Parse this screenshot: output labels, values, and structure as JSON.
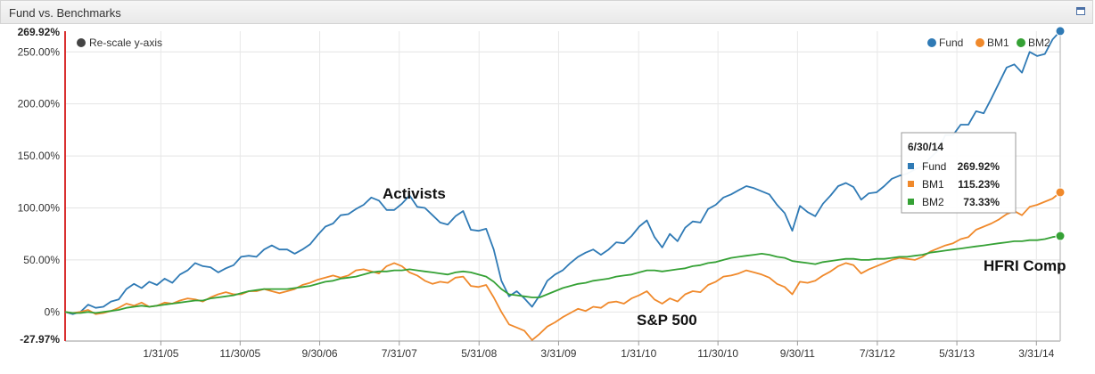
{
  "window": {
    "title": "Fund vs. Benchmarks"
  },
  "controls": {
    "rescale_label": "Re-scale y-axis"
  },
  "tooltip": {
    "date": "6/30/14",
    "rows": [
      {
        "name": "Fund",
        "value": "269.92%"
      },
      {
        "name": "BM1",
        "value": "115.23%"
      },
      {
        "name": "BM2",
        "value": "73.33%"
      }
    ]
  },
  "annotations": {
    "fund": "Activists",
    "bm1": "S&P 500",
    "bm2": "HFRI Comp"
  },
  "colors": {
    "fund": "#2f7ab5",
    "bm1": "#f0892b",
    "bm2": "#35a135",
    "axis_marker": "#d93030"
  },
  "chart_data": {
    "type": "line",
    "y_unit": "%",
    "ylim": [
      -27.97,
      269.92
    ],
    "y_ticks": [
      0,
      50,
      100,
      150,
      200,
      250
    ],
    "y_tick_labels": [
      "0%",
      "50.00%",
      "100.00%",
      "150.00%",
      "200.00%",
      "250.00%"
    ],
    "y_min_label": "-27.97%",
    "y_max_label": "269.92%",
    "x_tick_labels": [
      "1/31/05",
      "11/30/05",
      "9/30/06",
      "7/31/07",
      "5/31/08",
      "3/31/09",
      "1/31/10",
      "11/30/10",
      "9/30/11",
      "7/31/12",
      "5/31/13",
      "3/31/14"
    ],
    "x_start": "2004-01-31",
    "x_end": "2014-06-30",
    "grid": true,
    "legend": "top-right",
    "series": [
      {
        "name": "Fund",
        "values": [
          0,
          -2,
          0,
          7,
          4,
          5,
          10,
          12,
          22,
          27,
          23,
          29,
          26,
          32,
          28,
          36,
          40,
          47,
          44,
          43,
          38,
          42,
          45,
          53,
          54,
          53,
          60,
          64,
          60,
          60,
          56,
          60,
          65,
          74,
          82,
          85,
          93,
          94,
          99,
          103,
          110,
          107,
          98,
          98,
          104,
          112,
          101,
          100,
          93,
          86,
          84,
          92,
          97,
          79,
          78,
          80,
          60,
          30,
          15,
          20,
          13,
          5,
          16,
          30,
          36,
          40,
          47,
          53,
          57,
          60,
          55,
          60,
          67,
          66,
          73,
          82,
          88,
          72,
          62,
          75,
          68,
          81,
          87,
          86,
          99,
          103,
          110,
          113,
          117,
          121,
          119,
          116,
          113,
          103,
          95,
          78,
          102,
          96,
          92,
          104,
          112,
          121,
          124,
          120,
          108,
          114,
          115,
          121,
          128,
          131,
          133,
          137,
          140,
          148,
          155,
          170,
          170,
          180,
          180,
          193,
          191,
          205,
          220,
          235,
          238,
          230,
          250,
          246,
          248,
          262,
          270
        ]
      },
      {
        "name": "BM1",
        "values": [
          0,
          -1,
          0,
          2,
          -2,
          -1,
          1,
          4,
          8,
          6,
          9,
          5,
          6,
          9,
          8,
          11,
          13,
          12,
          10,
          14,
          17,
          19,
          17,
          17,
          20,
          20,
          22,
          20,
          18,
          20,
          22,
          26,
          28,
          31,
          33,
          35,
          33,
          35,
          40,
          41,
          39,
          37,
          44,
          47,
          44,
          38,
          35,
          30,
          27,
          29,
          28,
          33,
          34,
          25,
          24,
          26,
          14,
          0,
          -12,
          -15,
          -18,
          -27,
          -21,
          -14,
          -10,
          -5,
          -1,
          3,
          1,
          5,
          4,
          9,
          10,
          8,
          13,
          16,
          20,
          12,
          8,
          13,
          10,
          17,
          20,
          19,
          26,
          29,
          34,
          35,
          37,
          40,
          38,
          36,
          33,
          27,
          24,
          17,
          29,
          28,
          30,
          35,
          39,
          44,
          47,
          45,
          37,
          41,
          44,
          47,
          50,
          52,
          51,
          50,
          53,
          58,
          61,
          64,
          66,
          70,
          72,
          79,
          82,
          85,
          89,
          94,
          97,
          93,
          101,
          103,
          106,
          109,
          115
        ]
      },
      {
        "name": "BM2",
        "values": [
          0,
          -1,
          -1,
          0,
          -1,
          0,
          1,
          2,
          4,
          5,
          6,
          5,
          6,
          7,
          8,
          9,
          10,
          11,
          11,
          13,
          14,
          15,
          16,
          18,
          20,
          21,
          22,
          22,
          22,
          22,
          23,
          24,
          25,
          27,
          29,
          30,
          32,
          33,
          34,
          36,
          38,
          39,
          39,
          40,
          40,
          41,
          40,
          39,
          38,
          37,
          36,
          38,
          39,
          38,
          36,
          34,
          29,
          22,
          17,
          16,
          15,
          14,
          14,
          17,
          20,
          23,
          25,
          27,
          28,
          30,
          31,
          32,
          34,
          35,
          36,
          38,
          40,
          40,
          39,
          40,
          41,
          42,
          44,
          45,
          47,
          48,
          50,
          52,
          53,
          54,
          55,
          56,
          55,
          53,
          52,
          49,
          48,
          47,
          46,
          48,
          49,
          50,
          51,
          51,
          50,
          50,
          51,
          51,
          52,
          53,
          53,
          54,
          55,
          57,
          58,
          59,
          60,
          61,
          62,
          63,
          64,
          65,
          66,
          67,
          68,
          68,
          69,
          69,
          70,
          72,
          73
        ]
      }
    ]
  }
}
